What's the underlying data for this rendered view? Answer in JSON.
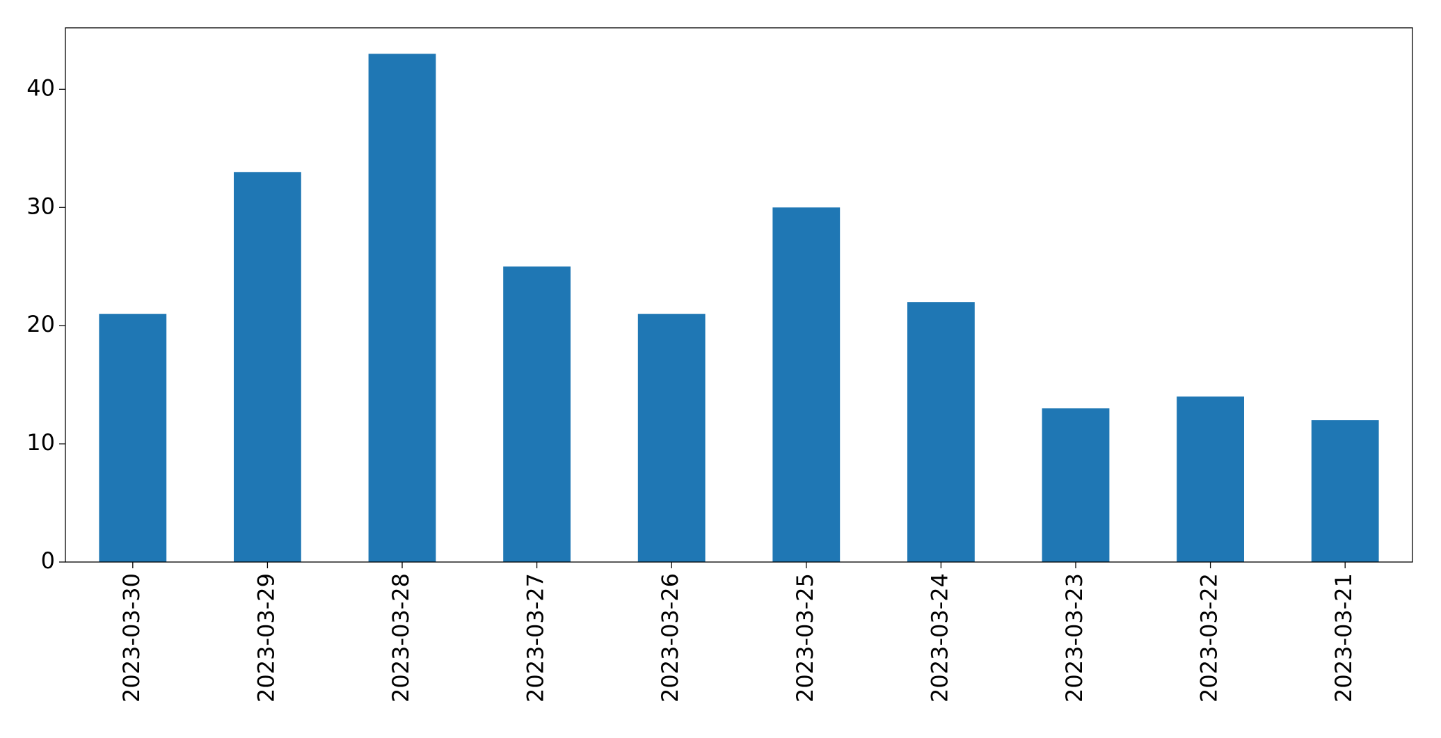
{
  "chart_data": {
    "type": "bar",
    "categories": [
      "2023-03-30",
      "2023-03-29",
      "2023-03-28",
      "2023-03-27",
      "2023-03-26",
      "2023-03-25",
      "2023-03-24",
      "2023-03-23",
      "2023-03-22",
      "2023-03-21"
    ],
    "values": [
      21,
      33,
      43,
      25,
      21,
      30,
      22,
      13,
      14,
      12
    ],
    "color": "#1f77b4",
    "ylim": [
      0,
      45.2
    ],
    "yticks": [
      0,
      10,
      20,
      30,
      40
    ],
    "grid": false
  }
}
